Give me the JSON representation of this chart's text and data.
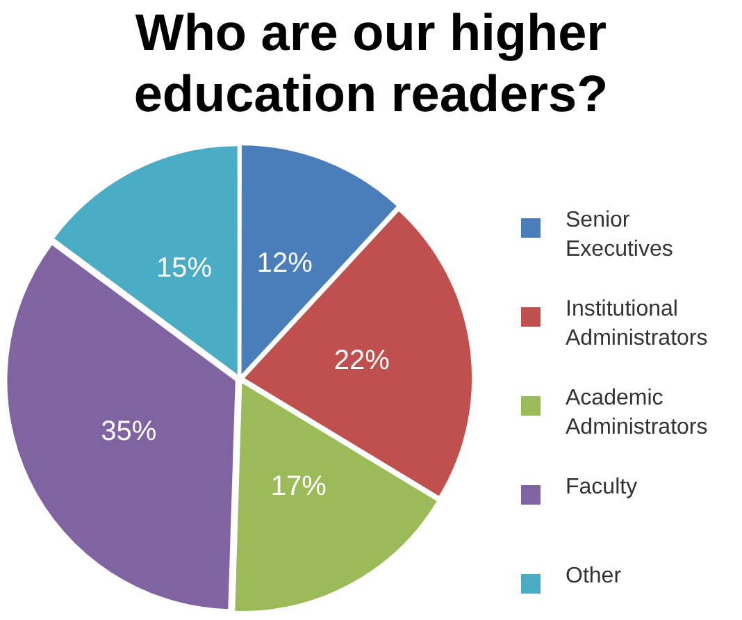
{
  "chart_data": {
    "type": "pie",
    "title": "Who are our higher education readers?",
    "categories": [
      "Senior Executives",
      "Institutional Administrators",
      "Academic Administrators",
      "Faculty",
      "Other"
    ],
    "values": [
      12,
      22,
      17,
      35,
      15
    ],
    "colors": [
      "#4a7ebb",
      "#c0504d",
      "#9bbb59",
      "#8064a2",
      "#4bacc6"
    ],
    "value_labels": [
      "12%",
      "22%",
      "17%",
      "35%",
      "15%"
    ],
    "legend": "right"
  }
}
